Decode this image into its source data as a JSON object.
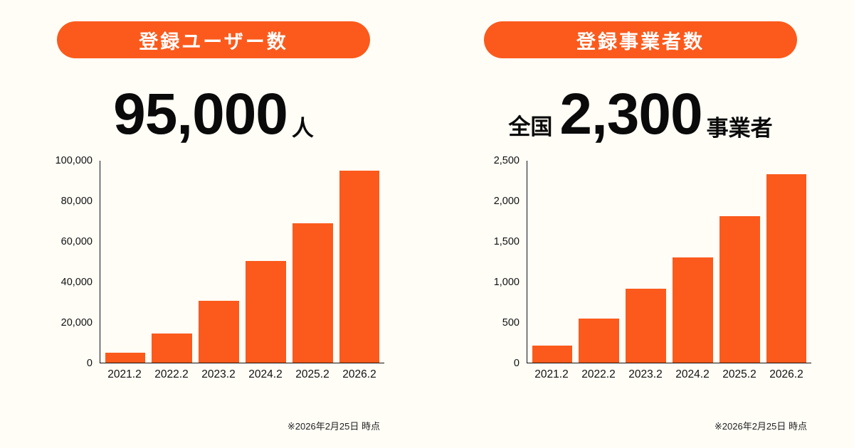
{
  "colors": {
    "accent": "#FB5A1C",
    "background": "#FFFDF6",
    "text": "#111111",
    "pill_text": "#FFFFFF",
    "headline_text": "#0A0A0A",
    "axis": "#111111",
    "footnote_text": "#222222"
  },
  "chart_data": [
    {
      "type": "bar",
      "title": "登録ユーザー数",
      "headline": {
        "prefix": "",
        "value": "95,000",
        "suffix": "人"
      },
      "categories": [
        "2021.2",
        "2022.2",
        "2023.2",
        "2024.2",
        "2025.2",
        "2026.2"
      ],
      "values": [
        4800,
        14500,
        30500,
        50500,
        69000,
        95000
      ],
      "ylim": [
        0,
        100000
      ],
      "yticks": [
        {
          "value": 0,
          "label": "0"
        },
        {
          "value": 20000,
          "label": "20,000"
        },
        {
          "value": 40000,
          "label": "40,000"
        },
        {
          "value": 60000,
          "label": "60,000"
        },
        {
          "value": 80000,
          "label": "80,000"
        },
        {
          "value": 100000,
          "label": "100,000"
        }
      ],
      "xlabel": "",
      "ylabel": "",
      "grid": false,
      "legend": "none",
      "footnote": "※2026年2月25日 時点"
    },
    {
      "type": "bar",
      "title": "登録事業者数",
      "headline": {
        "prefix": "全国",
        "value": "2,300",
        "suffix": "事業者"
      },
      "categories": [
        "2021.2",
        "2022.2",
        "2023.2",
        "2024.2",
        "2025.2",
        "2026.2"
      ],
      "values": [
        210,
        545,
        920,
        1300,
        1810,
        2330
      ],
      "ylim": [
        0,
        2500
      ],
      "yticks": [
        {
          "value": 0,
          "label": "0"
        },
        {
          "value": 500,
          "label": "500"
        },
        {
          "value": 1000,
          "label": "1,000"
        },
        {
          "value": 1500,
          "label": "1,500"
        },
        {
          "value": 2000,
          "label": "2,000"
        },
        {
          "value": 2500,
          "label": "2,500"
        }
      ],
      "xlabel": "",
      "ylabel": "",
      "grid": false,
      "legend": "none",
      "footnote": "※2026年2月25日 時点"
    }
  ]
}
